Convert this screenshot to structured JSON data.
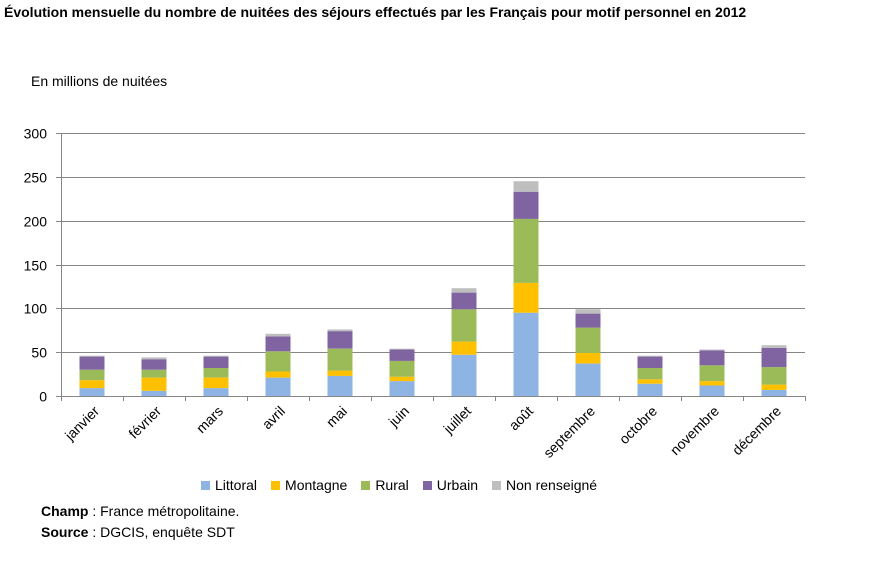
{
  "colors": {
    "Littoral": "#8eb4e3",
    "Montagne": "#ffc000",
    "Rural": "#9bbb59",
    "Urbain": "#8064a2",
    "Non renseigné": "#bfbfbf",
    "grid": "#868686"
  },
  "footnotes": {
    "champ_label": "Champ",
    "champ_text": " : France métropolitaine.",
    "source_label": "Source",
    "source_text": " : DGCIS, enquête SDT"
  },
  "chart_data": {
    "type": "bar",
    "stacked": true,
    "title": "Évolution mensuelle du nombre de nuitées des séjours effectués par les Français pour motif personnel en 2012",
    "ylabel": "En millions de nuitées",
    "xlabel": "",
    "ylim": [
      0,
      300
    ],
    "yticks": [
      0,
      50,
      100,
      150,
      200,
      250,
      300
    ],
    "grid": true,
    "legend_position": "bottom",
    "categories": [
      "janvier",
      "février",
      "mars",
      "avril",
      "mai",
      "juin",
      "juillet",
      "août",
      "septembre",
      "octobre",
      "novembre",
      "décembre"
    ],
    "series": [
      {
        "name": "Littoral",
        "values": [
          9,
          6,
          9,
          21,
          23,
          17,
          47,
          95,
          37,
          14,
          12,
          7
        ]
      },
      {
        "name": "Montagne",
        "values": [
          9,
          15,
          12,
          7,
          6,
          5,
          15,
          34,
          12,
          5,
          5,
          6
        ]
      },
      {
        "name": "Rural",
        "values": [
          12,
          9,
          11,
          23,
          25,
          18,
          37,
          73,
          29,
          13,
          18,
          20
        ]
      },
      {
        "name": "Urbain",
        "values": [
          15,
          12,
          13,
          17,
          20,
          13,
          19,
          31,
          16,
          13,
          17,
          22
        ]
      },
      {
        "name": "Non renseigné",
        "values": [
          1,
          2,
          1,
          3,
          2,
          1,
          5,
          12,
          5,
          1,
          1,
          3
        ]
      }
    ]
  }
}
